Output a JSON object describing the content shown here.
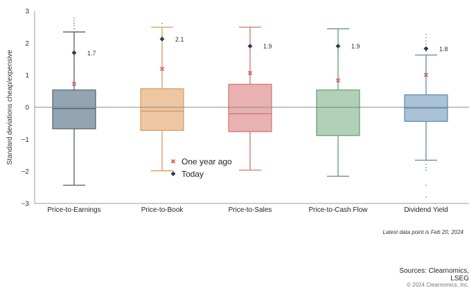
{
  "chart_data": {
    "type": "box",
    "ylabel": "Standard deviations cheap/expensive",
    "ylim": [
      -3,
      3
    ],
    "yticks": [
      3,
      2,
      1,
      0,
      -1,
      -2,
      -3
    ],
    "ytick_labels": [
      "3",
      "2",
      "1",
      "0",
      "−1",
      "−2",
      "−3"
    ],
    "zero_line": true,
    "categories": [
      "Price-to-Earnings",
      "Price-to-Book",
      "Price-to-Sales",
      "Price-to-Cash Flow",
      "Dividend Yield"
    ],
    "boxes": [
      {
        "category": "Price-to-Earnings",
        "whisker_low": -2.43,
        "q1": -0.67,
        "median": -0.04,
        "q3": 0.54,
        "whisker_high": 2.35,
        "outliers_high": [
          2.45,
          2.55,
          2.62,
          2.7,
          2.78
        ],
        "outliers_low": [],
        "one_year_ago": 0.73,
        "today": 1.7,
        "today_label": "1.7",
        "color": "#93a5b3",
        "line_color": "#4f5d6a"
      },
      {
        "category": "Price-to-Book",
        "whisker_low": -1.98,
        "q1": -0.72,
        "median": -0.12,
        "q3": 0.58,
        "whisker_high": 2.5,
        "outliers_high": [
          2.62
        ],
        "outliers_low": [],
        "one_year_ago": 1.2,
        "today": 2.13,
        "today_label": "2.1",
        "color": "#edc7a1",
        "line_color": "#d69a5c"
      },
      {
        "category": "Price-to-Sales",
        "whisker_low": -1.96,
        "q1": -0.76,
        "median": -0.2,
        "q3": 0.72,
        "whisker_high": 2.5,
        "outliers_high": [],
        "outliers_low": [],
        "one_year_ago": 1.07,
        "today": 1.91,
        "today_label": "1.9",
        "color": "#e9b1b1",
        "line_color": "#d07474"
      },
      {
        "category": "Price-to-Cash Flow",
        "whisker_low": -2.15,
        "q1": -0.88,
        "median": 0.0,
        "q3": 0.54,
        "whisker_high": 2.45,
        "outliers_high": [],
        "outliers_low": [],
        "one_year_ago": 0.84,
        "today": 1.91,
        "today_label": "1.9",
        "color": "#b2d0b8",
        "line_color": "#5e9b6d"
      },
      {
        "category": "Dividend Yield",
        "whisker_low": -1.65,
        "q1": -0.44,
        "median": -0.02,
        "q3": 0.39,
        "whisker_high": 1.63,
        "outliers_high": [
          1.75,
          1.85,
          1.97,
          2.07,
          2.17,
          2.27
        ],
        "outliers_low": [
          -1.78,
          -1.88,
          -1.97,
          -2.43,
          -2.8
        ],
        "one_year_ago": 1.01,
        "today": 1.83,
        "today_label": "1.8",
        "color": "#a9c2d6",
        "line_color": "#5b89ad"
      }
    ],
    "legend": {
      "position": "inside-lower-left",
      "entries": [
        {
          "label": "One year ago",
          "marker": "x",
          "color": "#d9534f"
        },
        {
          "label": "Today",
          "marker": "diamond",
          "color": "#2c3e55"
        }
      ]
    },
    "marker_colors": {
      "one_year_ago": "#d46a6a",
      "today": "#2c3e55"
    }
  },
  "footnote": "Latest data point is Feb 20, 2024",
  "sources_line1": "Sources: Clearnomics,",
  "sources_line2": "LSEG",
  "copyright": "© 2024 Clearnomics, Inc."
}
